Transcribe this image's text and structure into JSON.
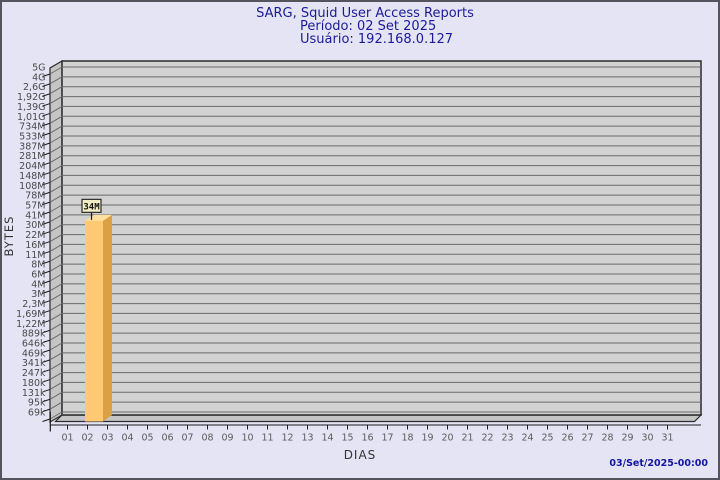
{
  "header": {
    "title": "SARG, Squid User Access Reports",
    "period": "Período: 02 Set 2025",
    "user": "Usuário: 192.168.0.127"
  },
  "footer": {
    "generated": "03/Set/2025-00:00"
  },
  "chart_data": {
    "type": "bar",
    "title": "SARG, Squid User Access Reports",
    "subtitle": [
      "Período: 02 Set 2025",
      "Usuário: 192.168.0.127"
    ],
    "xlabel": "DIAS",
    "ylabel": "BYTES",
    "y_scale": "log",
    "grid": true,
    "legend": null,
    "y_axis_ticks_top_to_bottom": [
      "5G",
      "4G",
      "2,6G",
      "1,92G",
      "1,39G",
      "1,01G",
      "734M",
      "533M",
      "387M",
      "281M",
      "204M",
      "148M",
      "108M",
      "78M",
      "57M",
      "41M",
      "30M",
      "22M",
      "16M",
      "11M",
      "8M",
      "6M",
      "4M",
      "3M",
      "2,3M",
      "1,69M",
      "1,22M",
      "889k",
      "646k",
      "469k",
      "341k",
      "247k",
      "180k",
      "131k",
      "95k",
      "69k"
    ],
    "y_min_bytes": 69000,
    "y_max_bytes": 5000000000,
    "categories": [
      "01",
      "02",
      "03",
      "04",
      "05",
      "06",
      "07",
      "08",
      "09",
      "10",
      "11",
      "12",
      "13",
      "14",
      "15",
      "16",
      "17",
      "18",
      "19",
      "20",
      "21",
      "22",
      "23",
      "24",
      "25",
      "26",
      "27",
      "28",
      "29",
      "30",
      "31"
    ],
    "values_bytes": [
      null,
      34000000,
      null,
      null,
      null,
      null,
      null,
      null,
      null,
      null,
      null,
      null,
      null,
      null,
      null,
      null,
      null,
      null,
      null,
      null,
      null,
      null,
      null,
      null,
      null,
      null,
      null,
      null,
      null,
      null,
      null
    ],
    "bar_labels": [
      null,
      "34M",
      null,
      null,
      null,
      null,
      null,
      null,
      null,
      null,
      null,
      null,
      null,
      null,
      null,
      null,
      null,
      null,
      null,
      null,
      null,
      null,
      null,
      null,
      null,
      null,
      null,
      null,
      null,
      null,
      null
    ]
  },
  "colors": {
    "page_bg": "#E4E4F4",
    "frame_border": "#54545E",
    "plot_bg": "#D2D2D2",
    "wall_bg": "#C5C5C5",
    "grid_line": "#6A6A6A",
    "plot_border": "#2B2B2B",
    "axis_line": "#1A1A1A",
    "bar_front": "#FFC873",
    "bar_side": "#DBA044",
    "bar_top": "#FFDF9E",
    "value_box_bg": "#F1EEC4",
    "title_text": "#1B1B97",
    "timestamp_text": "#1414A4",
    "y_tick_text": "#4A4A4A",
    "x_tick_text": "#5D5D5D",
    "axis_title_text": "#333333"
  }
}
